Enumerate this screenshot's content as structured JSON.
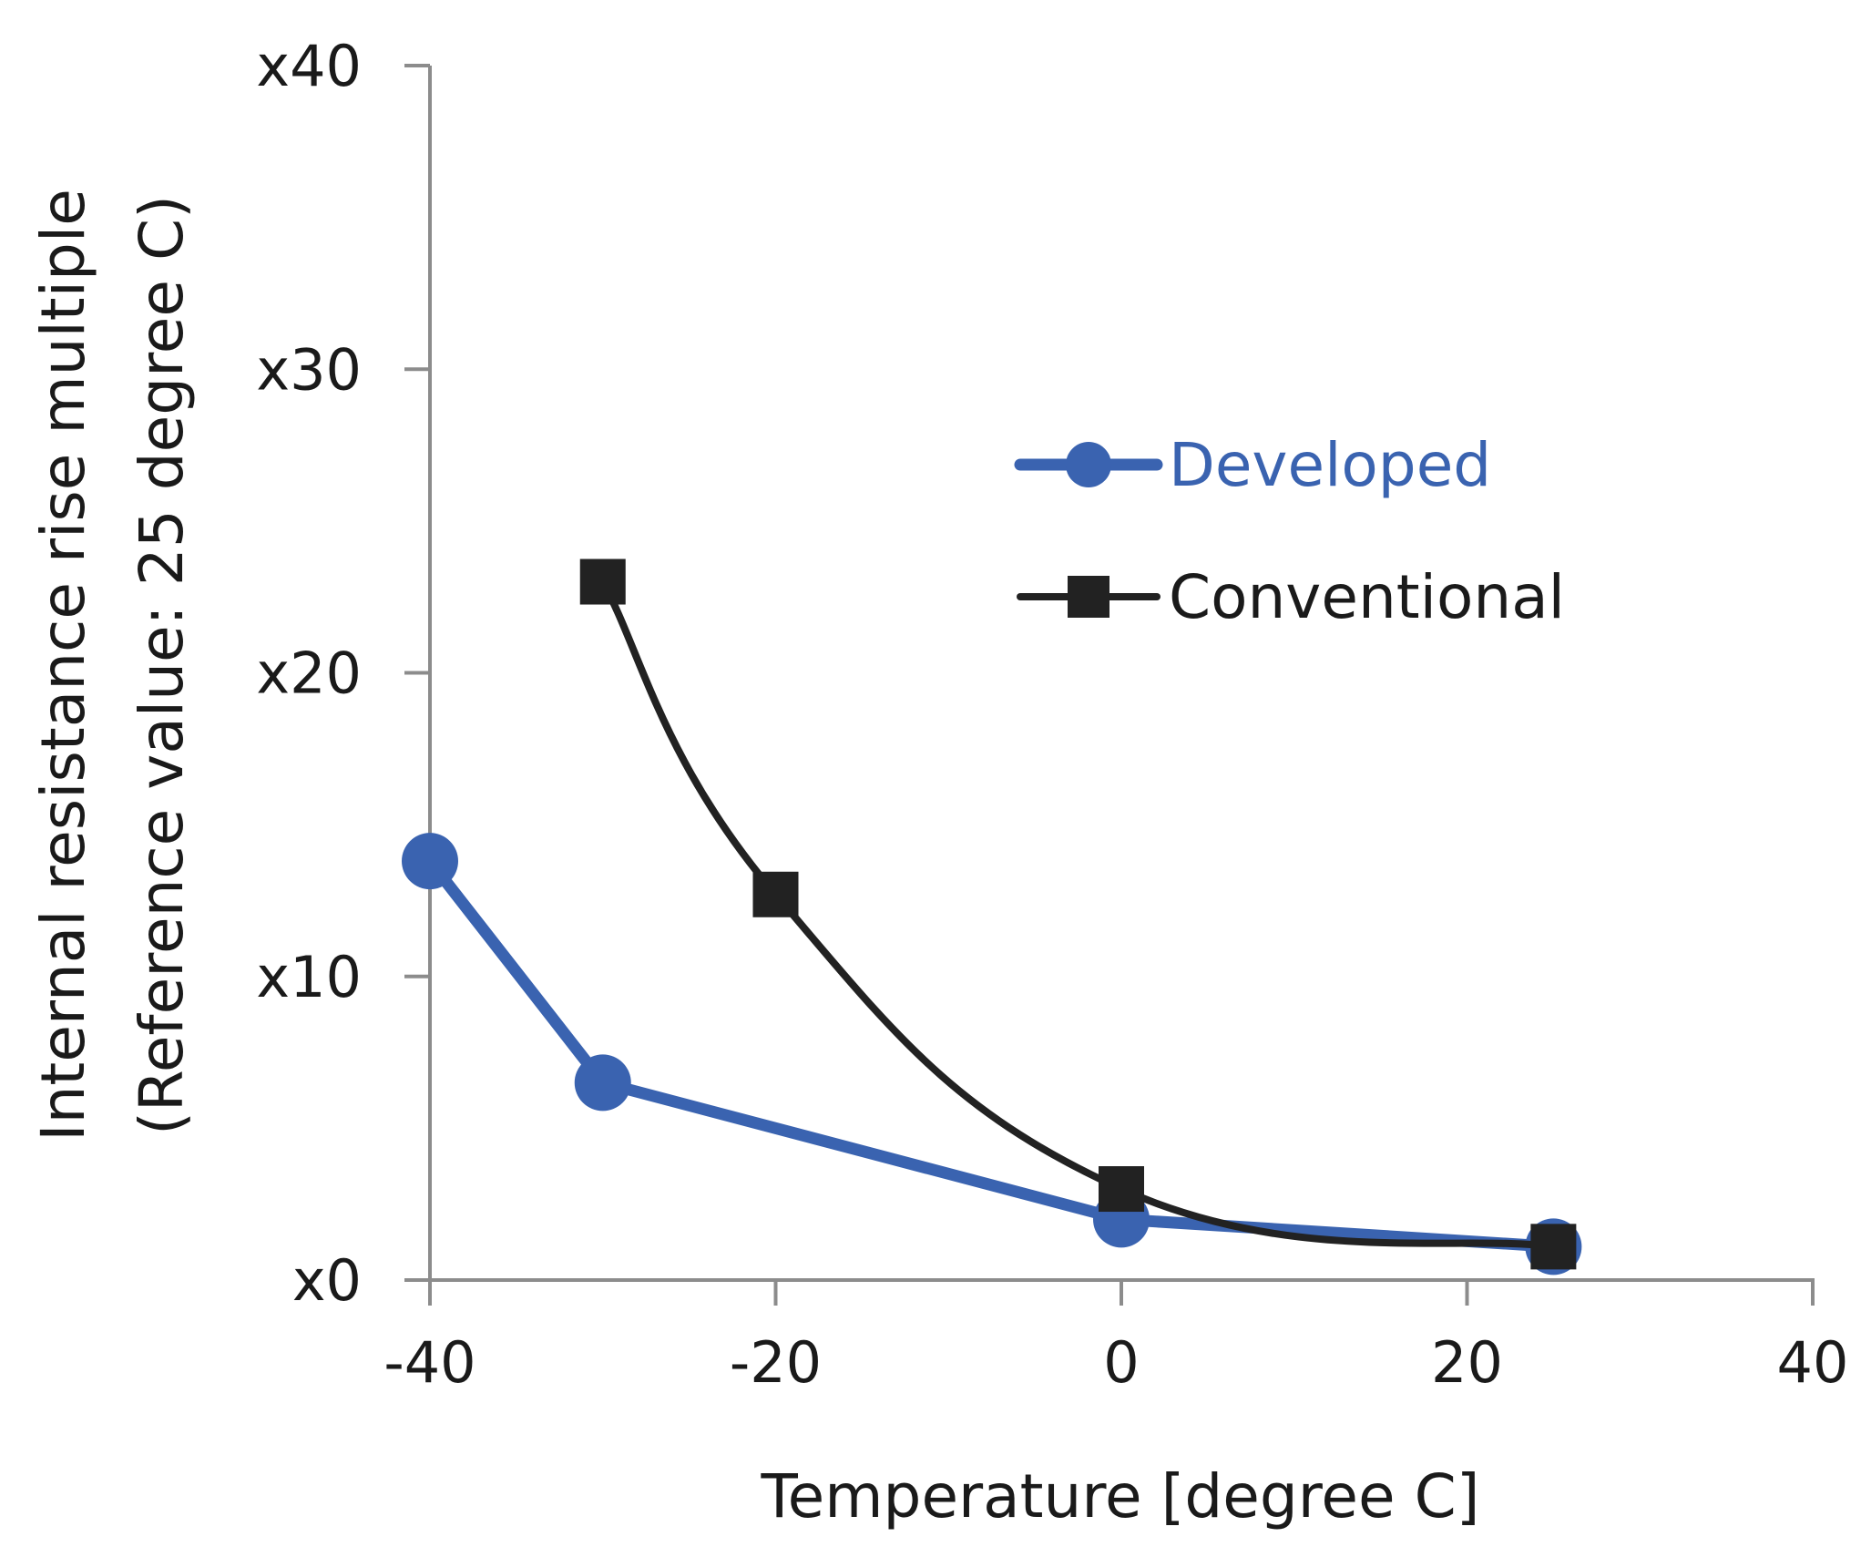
{
  "chart_data": {
    "type": "line",
    "title": "",
    "xlabel": "Temperature [degree C]",
    "ylabel_line1": "Internal resistance rise multiple",
    "ylabel_line2": "(Reference value: 25 degree C)",
    "xlim": [
      -40,
      40
    ],
    "ylim": [
      0,
      40
    ],
    "x_ticks": [
      -40,
      -20,
      0,
      20,
      40
    ],
    "x_tick_labels": [
      "-40",
      "-20",
      "0",
      "20",
      "40"
    ],
    "y_ticks": [
      0,
      10,
      20,
      30,
      40
    ],
    "y_tick_labels": [
      "x0",
      "x10",
      "x20",
      "x30",
      "x40"
    ],
    "grid": false,
    "legend_position": "right-middle",
    "series": [
      {
        "name": "Developed",
        "color": "#3a63b0",
        "marker": "circle",
        "smooth": false,
        "x": [
          -40,
          -30,
          0,
          25
        ],
        "y": [
          13.8,
          6.5,
          2.0,
          1.1
        ]
      },
      {
        "name": "Conventional",
        "color": "#222222",
        "marker": "square",
        "smooth": true,
        "x": [
          -30,
          -20,
          0,
          25
        ],
        "y": [
          23.0,
          12.7,
          3.0,
          1.1
        ]
      }
    ]
  }
}
